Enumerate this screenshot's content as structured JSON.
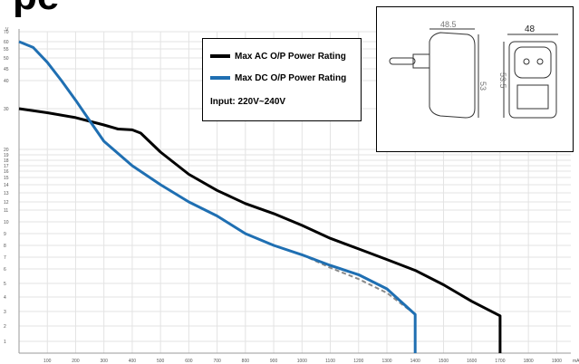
{
  "page_title_fragment": "pe",
  "colors": {
    "ac": "#000000",
    "dc": "#1f6fb2",
    "dashed": "#8a8a8a",
    "grid": "#e3e3e3",
    "axis": "#9a9a9a",
    "tick": "#555555"
  },
  "legend": {
    "ac_label": "Max AC O/P Power Rating",
    "dc_label": "Max DC O/P Power Rating",
    "input_label": "Input: 220V~240V"
  },
  "inset": {
    "dim_depth": "48.5",
    "dim_width": "48",
    "dim_height_side": "53",
    "dim_height_front": "53.5"
  },
  "chart_data": {
    "type": "line",
    "ylabel": "V",
    "xlabel": "mA",
    "x_ticks": [
      100,
      200,
      300,
      400,
      500,
      600,
      700,
      800,
      900,
      1000,
      1100,
      1200,
      1300,
      1400,
      1500,
      1600,
      1700,
      1800,
      1900
    ],
    "y_ticks": [
      1,
      2,
      3,
      4,
      5,
      6,
      7,
      8,
      9,
      10,
      11,
      12,
      13,
      14,
      15,
      16,
      17,
      18,
      19,
      20,
      30,
      40,
      45,
      50,
      55,
      60,
      70
    ],
    "series": [
      {
        "name": "Max AC O/P Power Rating",
        "x": [
          0,
          100,
          200,
          300,
          350,
          400,
          430,
          500,
          600,
          700,
          800,
          900,
          1000,
          1100,
          1200,
          1300,
          1400,
          1500,
          1600,
          1700,
          1700
        ],
        "y": [
          30,
          29,
          27.8,
          26,
          25,
          24.8,
          24,
          19.5,
          15.5,
          13.3,
          11.8,
          10.7,
          9.7,
          8.6,
          7.7,
          6.8,
          5.9,
          4.9,
          3.7,
          2.7,
          0
        ]
      },
      {
        "name": "Max DC O/P Power Rating",
        "x": [
          0,
          50,
          100,
          150,
          200,
          250,
          300,
          400,
          500,
          600,
          700,
          800,
          900,
          1000,
          1100,
          1200,
          1300,
          1400,
          1400
        ],
        "y": [
          60,
          56,
          48,
          40,
          33,
          27,
          22,
          17,
          14,
          12,
          10.5,
          9,
          8,
          7.2,
          6.3,
          5.6,
          4.6,
          2.8,
          0
        ]
      },
      {
        "name": "",
        "style": "dashed",
        "x": [
          1000,
          1100,
          1200,
          1300,
          1400
        ],
        "y": [
          7.2,
          6.1,
          5.3,
          4.3,
          2.8
        ]
      }
    ]
  }
}
